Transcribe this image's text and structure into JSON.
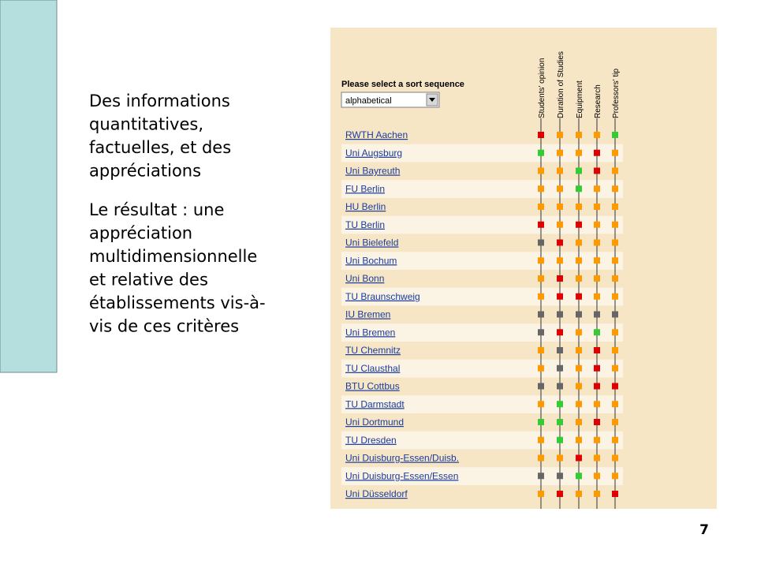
{
  "slide": {
    "paragraphs": [
      [
        "Des informations",
        "quantitatives,",
        "factuelles, et des",
        "appréciations"
      ],
      [
        "Le résultat : une",
        "appréciation",
        "multidimensionnelle",
        "et relative des",
        "établissements vis-à-",
        "vis de ces critères"
      ]
    ],
    "page_number": "7"
  },
  "screenshot": {
    "sort_label": "Please select a sort sequence",
    "sort_value": "alphabetical",
    "columns": [
      "Students' opinion",
      "Duration of Studies",
      "Equipment",
      "Research",
      "Professors' tip"
    ],
    "rows": [
      {
        "name": "RWTH Aachen",
        "ratings": [
          "#e00000",
          "#ff9900",
          "#ff9900",
          "#ff9900",
          "#33cc33"
        ]
      },
      {
        "name": "Uni Augsburg",
        "ratings": [
          "#33cc33",
          "#ff9900",
          "#ff9900",
          "#e00000",
          "#ff9900"
        ]
      },
      {
        "name": "Uni Bayreuth",
        "ratings": [
          "#ff9900",
          "#ff9900",
          "#33cc33",
          "#e00000",
          "#ff9900"
        ]
      },
      {
        "name": "FU Berlin",
        "ratings": [
          "#ff9900",
          "#ff9900",
          "#33cc33",
          "#ff9900",
          "#ff9900"
        ]
      },
      {
        "name": "HU Berlin",
        "ratings": [
          "#ff9900",
          "#ff9900",
          "#ff9900",
          "#ff9900",
          "#ff9900"
        ]
      },
      {
        "name": "TU Berlin",
        "ratings": [
          "#e00000",
          "#ff9900",
          "#e00000",
          "#ff9900",
          "#ff9900"
        ]
      },
      {
        "name": "Uni Bielefeld",
        "ratings": [
          "#666666",
          "#e00000",
          "#ff9900",
          "#ff9900",
          "#ff9900"
        ]
      },
      {
        "name": "Uni Bochum",
        "ratings": [
          "#ff9900",
          "#ff9900",
          "#ff9900",
          "#ff9900",
          "#ff9900"
        ]
      },
      {
        "name": "Uni Bonn",
        "ratings": [
          "#ff9900",
          "#e00000",
          "#ff9900",
          "#ff9900",
          "#ff9900"
        ]
      },
      {
        "name": "TU Braunschweig",
        "ratings": [
          "#ff9900",
          "#e00000",
          "#e00000",
          "#ff9900",
          "#ff9900"
        ]
      },
      {
        "name": "IU Bremen",
        "ratings": [
          "#666666",
          "#666666",
          "#666666",
          "#666666",
          "#666666"
        ]
      },
      {
        "name": "Uni Bremen",
        "ratings": [
          "#666666",
          "#e00000",
          "#ff9900",
          "#33cc33",
          "#ff9900"
        ]
      },
      {
        "name": "TU Chemnitz",
        "ratings": [
          "#ff9900",
          "#666666",
          "#ff9900",
          "#e00000",
          "#ff9900"
        ]
      },
      {
        "name": "TU Clausthal",
        "ratings": [
          "#ff9900",
          "#666666",
          "#ff9900",
          "#e00000",
          "#ff9900"
        ]
      },
      {
        "name": "BTU Cottbus",
        "ratings": [
          "#666666",
          "#666666",
          "#ff9900",
          "#e00000",
          "#e00000"
        ]
      },
      {
        "name": "TU Darmstadt",
        "ratings": [
          "#ff9900",
          "#33cc33",
          "#ff9900",
          "#ff9900",
          "#ff9900"
        ]
      },
      {
        "name": "Uni Dortmund",
        "ratings": [
          "#33cc33",
          "#33cc33",
          "#ff9900",
          "#e00000",
          "#ff9900"
        ]
      },
      {
        "name": "TU Dresden",
        "ratings": [
          "#ff9900",
          "#33cc33",
          "#ff9900",
          "#ff9900",
          "#ff9900"
        ]
      },
      {
        "name": "Uni Duisburg-Essen/Duisb.",
        "ratings": [
          "#ff9900",
          "#ff9900",
          "#e00000",
          "#ff9900",
          "#ff9900"
        ]
      },
      {
        "name": "Uni Duisburg-Essen/Essen",
        "ratings": [
          "#666666",
          "#666666",
          "#33cc33",
          "#ff9900",
          "#ff9900"
        ]
      },
      {
        "name": "Uni Düsseldorf",
        "ratings": [
          "#ff9900",
          "#e00000",
          "#ff9900",
          "#ff9900",
          "#e00000"
        ]
      }
    ]
  }
}
